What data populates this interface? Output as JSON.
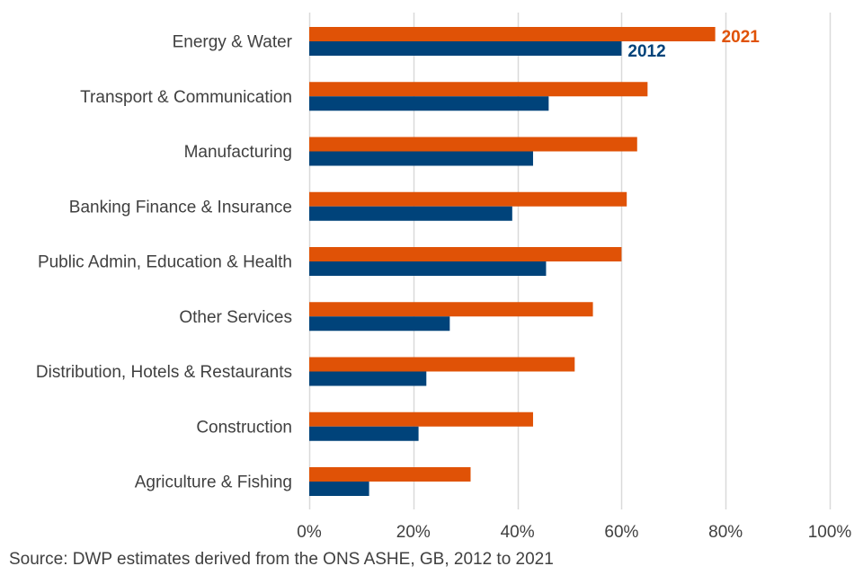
{
  "chart_data": {
    "type": "bar",
    "orientation": "horizontal",
    "title": "",
    "xlabel": "",
    "ylabel": "",
    "xlim": [
      0,
      100
    ],
    "x_ticks": [
      "0%",
      "20%",
      "40%",
      "60%",
      "80%",
      "100%"
    ],
    "x_tick_values": [
      0,
      20,
      40,
      60,
      80,
      100
    ],
    "grid": "vertical",
    "categories": [
      "Energy & Water",
      "Transport & Communication",
      "Manufacturing",
      "Banking Finance & Insurance",
      "Public Admin, Education & Health",
      "Other Services",
      "Distribution, Hotels & Restaurants",
      "Construction",
      "Agriculture & Fishing"
    ],
    "series": [
      {
        "name": "2021",
        "color": "#E05206",
        "values": [
          78,
          65,
          63,
          61,
          60,
          54.5,
          51,
          43,
          31
        ]
      },
      {
        "name": "2012",
        "color": "#00437A",
        "values": [
          60,
          46,
          43,
          39,
          45.5,
          27,
          22.5,
          21,
          11.5
        ]
      }
    ],
    "legend": "inline-labels-on-top-category",
    "source": "Source: DWP estimates derived from the ONS ASHE, GB, 2012 to 2021"
  }
}
